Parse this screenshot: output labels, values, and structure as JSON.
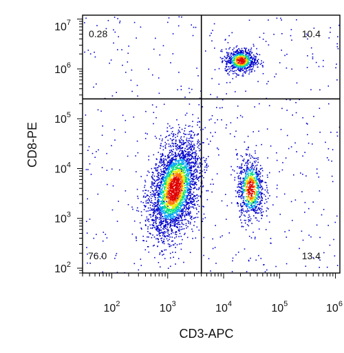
{
  "chart_data": {
    "type": "scatter",
    "title": "",
    "xlabel": "CD3-APC",
    "ylabel": "CD8-PE",
    "x_scale": "log",
    "y_scale": "log",
    "xlim": [
      30,
      1200000
    ],
    "ylim": [
      80,
      12000000
    ],
    "x_ticks": [
      {
        "value": 100,
        "base": "10",
        "exp": "2"
      },
      {
        "value": 1000,
        "base": "10",
        "exp": "3"
      },
      {
        "value": 10000,
        "base": "10",
        "exp": "4"
      },
      {
        "value": 100000,
        "base": "10",
        "exp": "5"
      },
      {
        "value": 1000000,
        "base": "10",
        "exp": "6"
      }
    ],
    "y_ticks": [
      {
        "value": 100,
        "base": "10",
        "exp": "2"
      },
      {
        "value": 1000,
        "base": "10",
        "exp": "3"
      },
      {
        "value": 10000,
        "base": "10",
        "exp": "4"
      },
      {
        "value": 100000,
        "base": "10",
        "exp": "5"
      },
      {
        "value": 1000000,
        "base": "10",
        "exp": "6"
      },
      {
        "value": 10000000,
        "base": "10",
        "exp": "7"
      }
    ],
    "gates": {
      "x": 4000,
      "y": 250000
    },
    "quadrants": [
      {
        "position": "top-left",
        "percent": "0.28"
      },
      {
        "position": "top-right",
        "percent": "10.4"
      },
      {
        "position": "bottom-left",
        "percent": "76.0"
      },
      {
        "position": "bottom-right",
        "percent": "13.4"
      }
    ],
    "populations": [
      {
        "x_center": 1300,
        "y_center": 4000,
        "spread_x": 0.22,
        "spread_y": 0.45,
        "share": 0.76
      },
      {
        "x_center": 20000,
        "y_center": 1500000,
        "spread_x": 0.14,
        "spread_y": 0.12,
        "share": 0.104
      },
      {
        "x_center": 30000,
        "y_center": 4000,
        "spread_x": 0.12,
        "spread_y": 0.32,
        "share": 0.134
      }
    ],
    "grid": false,
    "legend": "none",
    "colormap": [
      "#0000cc",
      "#00a0ff",
      "#00e080",
      "#e8e800",
      "#ff7000",
      "#e00000"
    ]
  }
}
